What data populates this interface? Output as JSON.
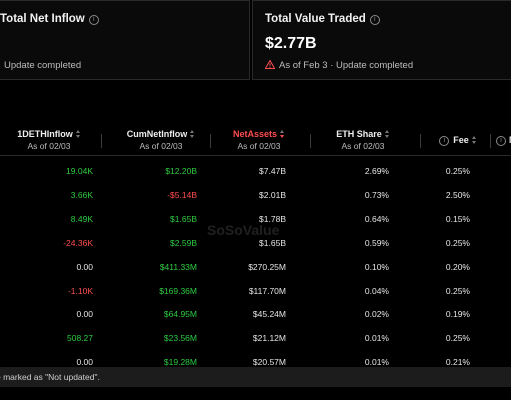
{
  "cards": {
    "net_inflow": {
      "title": "Total Net Inflow",
      "status": "Update completed"
    },
    "value_traded": {
      "title": "Total Value Traded",
      "value": "$2.77B",
      "status": "As of Feb 3 · Update completed"
    }
  },
  "table": {
    "columns": [
      {
        "name": "1DETHInflow",
        "sub": "As of 02/03"
      },
      {
        "name": "CumNetInflow",
        "sub": "As of 02/03"
      },
      {
        "name": "NetAssets",
        "sub": "As of 02/03"
      },
      {
        "name": "ETH Share",
        "sub": "As of 02/03"
      },
      {
        "name": "Fee",
        "sub": ""
      },
      {
        "name": "M",
        "sub": ""
      }
    ],
    "rows": [
      {
        "inflow": "19.04K",
        "cum": "$12.20B",
        "assets": "$7.47B",
        "share": "2.69%",
        "fee": "0.25%"
      },
      {
        "inflow": "3.66K",
        "cum": "-$5.14B",
        "assets": "$2.01B",
        "share": "0.73%",
        "fee": "2.50%"
      },
      {
        "inflow": "8.49K",
        "cum": "$1.65B",
        "assets": "$1.78B",
        "share": "0.64%",
        "fee": "0.15%"
      },
      {
        "inflow": "-24.36K",
        "cum": "$2.59B",
        "assets": "$1.65B",
        "share": "0.59%",
        "fee": "0.25%"
      },
      {
        "inflow": "0.00",
        "cum": "$411.33M",
        "assets": "$270.25M",
        "share": "0.10%",
        "fee": "0.20%"
      },
      {
        "inflow": "-1.10K",
        "cum": "$169.36M",
        "assets": "$117.70M",
        "share": "0.04%",
        "fee": "0.25%"
      },
      {
        "inflow": "0.00",
        "cum": "$64.95M",
        "assets": "$45.24M",
        "share": "0.02%",
        "fee": "0.19%"
      },
      {
        "inflow": "508.27",
        "cum": "$23.56M",
        "assets": "$21.12M",
        "share": "0.01%",
        "fee": "0.25%"
      },
      {
        "inflow": "0.00",
        "cum": "$19.28M",
        "assets": "$20.57M",
        "share": "0.01%",
        "fee": "0.21%"
      }
    ]
  },
  "footer": {
    "note": "e marked as \"Not updated\"."
  },
  "watermark": "SoSoValue",
  "colors": {
    "positive": "#2ecc40",
    "negative": "#ff4d4f",
    "active_sort": "#ff4d4f"
  },
  "icons": {
    "info": "info-icon",
    "warning": "warning-triangle-icon",
    "sort": "sort-arrows-icon"
  }
}
